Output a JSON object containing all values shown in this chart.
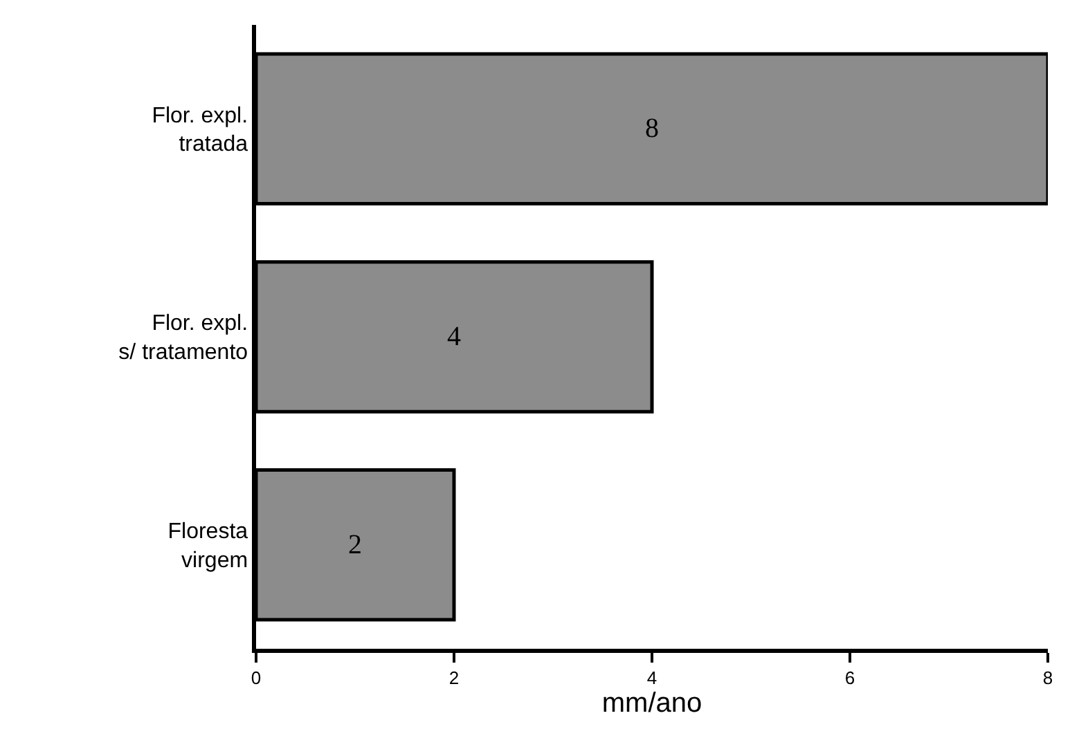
{
  "chart_data": {
    "type": "bar",
    "orientation": "horizontal",
    "categories": [
      "Flor. expl.\ntratada",
      "Flor. expl.\ns/ tratamento",
      "Floresta\nvirgem"
    ],
    "values": [
      8,
      4,
      2
    ],
    "color": "#8c8c8c",
    "xlim": [
      0,
      8
    ],
    "xticks": [
      0,
      2,
      4,
      6,
      8
    ],
    "xlabel": "mm/ano",
    "data_labels": true,
    "legend": false
  }
}
